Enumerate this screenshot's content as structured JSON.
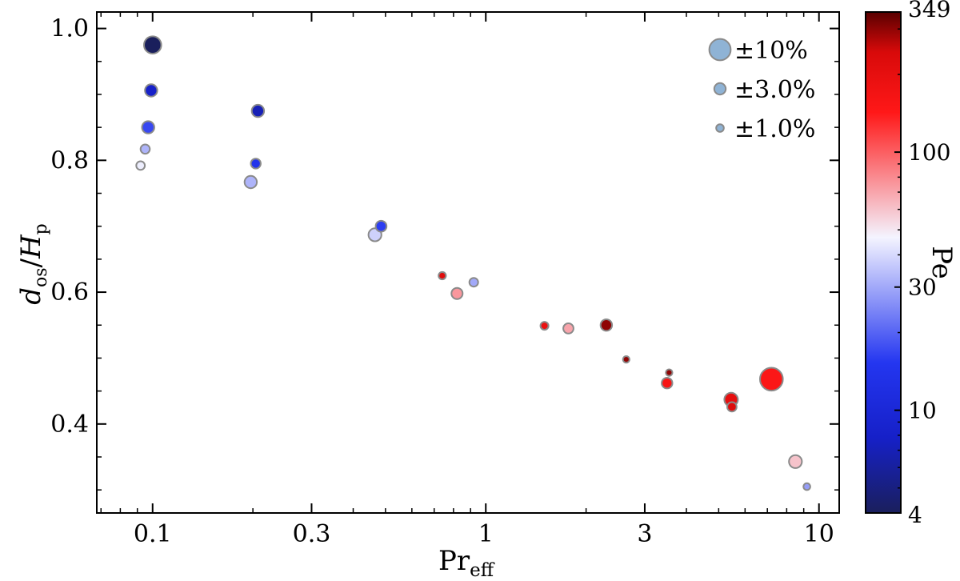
{
  "chart_data": {
    "type": "scatter",
    "title": "",
    "xlabel": {
      "main": "Pr",
      "sub": "eff"
    },
    "ylabel": {
      "d": "d",
      "d_sub": "os",
      "slash": "/",
      "h": "H",
      "h_sub": "p"
    },
    "xscale": "log",
    "xlim": [
      0.068,
      11.5
    ],
    "ylim": [
      0.265,
      1.025
    ],
    "xticks": [
      {
        "value": 0.1,
        "label": "0.1"
      },
      {
        "value": 0.3,
        "label": "0.3"
      },
      {
        "value": 1,
        "label": "1"
      },
      {
        "value": 3,
        "label": "3"
      },
      {
        "value": 10,
        "label": "10"
      }
    ],
    "yticks": [
      {
        "value": 0.4,
        "label": "0.4"
      },
      {
        "value": 0.6,
        "label": "0.6"
      },
      {
        "value": 0.8,
        "label": "0.8"
      },
      {
        "value": 1.0,
        "label": "1.0"
      }
    ],
    "marker_size_meaning": "uncertainty (percent)",
    "points": [
      {
        "x": 0.1,
        "y": 0.975,
        "pe": 4,
        "err_pct": 8.0
      },
      {
        "x": 0.099,
        "y": 0.906,
        "pe": 8,
        "err_pct": 3.5
      },
      {
        "x": 0.097,
        "y": 0.85,
        "pe": 17,
        "err_pct": 3.5
      },
      {
        "x": 0.095,
        "y": 0.817,
        "pe": 32,
        "err_pct": 1.7
      },
      {
        "x": 0.092,
        "y": 0.792,
        "pe": 45,
        "err_pct": 1.4
      },
      {
        "x": 0.207,
        "y": 0.875,
        "pe": 7,
        "err_pct": 3.5
      },
      {
        "x": 0.204,
        "y": 0.795,
        "pe": 14,
        "err_pct": 2.0
      },
      {
        "x": 0.197,
        "y": 0.767,
        "pe": 32,
        "err_pct": 3.5
      },
      {
        "x": 0.485,
        "y": 0.7,
        "pe": 16,
        "err_pct": 2.6
      },
      {
        "x": 0.465,
        "y": 0.687,
        "pe": 38,
        "err_pct": 4.0
      },
      {
        "x": 0.74,
        "y": 0.625,
        "pe": 220,
        "err_pct": 0.9
      },
      {
        "x": 0.92,
        "y": 0.615,
        "pe": 30,
        "err_pct": 1.5
      },
      {
        "x": 0.82,
        "y": 0.598,
        "pe": 75,
        "err_pct": 2.8
      },
      {
        "x": 1.5,
        "y": 0.549,
        "pe": 190,
        "err_pct": 1.1
      },
      {
        "x": 1.77,
        "y": 0.545,
        "pe": 70,
        "err_pct": 2.2
      },
      {
        "x": 2.3,
        "y": 0.55,
        "pe": 300,
        "err_pct": 3.0
      },
      {
        "x": 2.64,
        "y": 0.498,
        "pe": 300,
        "err_pct": 0.6
      },
      {
        "x": 3.55,
        "y": 0.478,
        "pe": 300,
        "err_pct": 0.6
      },
      {
        "x": 3.5,
        "y": 0.462,
        "pe": 160,
        "err_pct": 2.5
      },
      {
        "x": 5.45,
        "y": 0.437,
        "pe": 200,
        "err_pct": 4.5
      },
      {
        "x": 5.48,
        "y": 0.426,
        "pe": 230,
        "err_pct": 1.8
      },
      {
        "x": 7.2,
        "y": 0.468,
        "pe": 150,
        "err_pct": 15.0
      },
      {
        "x": 8.5,
        "y": 0.343,
        "pe": 60,
        "err_pct": 4.0
      },
      {
        "x": 9.2,
        "y": 0.305,
        "pe": 28,
        "err_pct": 0.7
      }
    ],
    "legend": {
      "position": "top-right",
      "entries": [
        {
          "label": "±10%",
          "err_pct": 10
        },
        {
          "label": "±3.0%",
          "err_pct": 3
        },
        {
          "label": "±1.0%",
          "err_pct": 1
        }
      ],
      "marker_color": "#8fb3d5"
    },
    "colorbar": {
      "label": "Pe",
      "scale": "log",
      "min": 4,
      "max": 349,
      "ticks": [
        {
          "value": 4,
          "label": "4"
        },
        {
          "value": 10,
          "label": "10"
        },
        {
          "value": 30,
          "label": "30"
        },
        {
          "value": 100,
          "label": "100"
        },
        {
          "value": 349,
          "label": "349"
        }
      ],
      "colormap_stops": [
        {
          "t": 0.0,
          "color": "#1a1f5c"
        },
        {
          "t": 0.15,
          "color": "#1620c8"
        },
        {
          "t": 0.3,
          "color": "#2436f0"
        },
        {
          "t": 0.55,
          "color": "#f4f4ff"
        },
        {
          "t": 0.8,
          "color": "#ff1818"
        },
        {
          "t": 0.92,
          "color": "#d80a0a"
        },
        {
          "t": 1.0,
          "color": "#5a0000"
        }
      ]
    }
  }
}
